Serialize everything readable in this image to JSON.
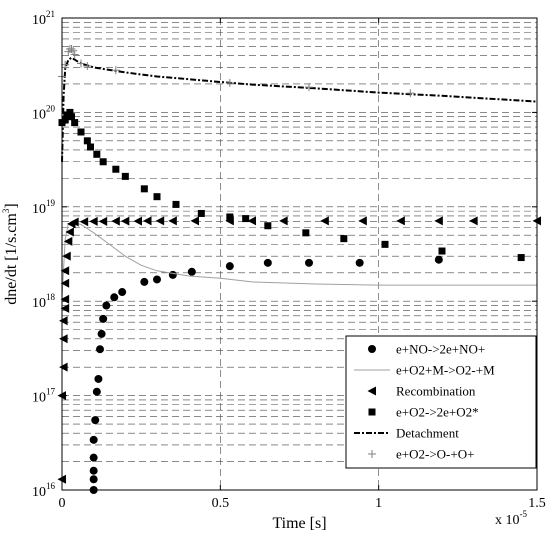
{
  "chart_data": {
    "type": "scatter",
    "title": "",
    "xlabel": "Time [s]",
    "ylabel_main": "dne/dt [1/s.cm",
    "ylabel_exp": "3",
    "ylabel_close": "]",
    "x_multiplier_base": "x 10",
    "x_multiplier_exp": "-5",
    "xscale": "linear",
    "yscale": "log",
    "xlim": [
      0,
      1.5
    ],
    "ylim": [
      1e+16,
      1e+21
    ],
    "grid": true,
    "legend_position": "bottom-right",
    "x_ticks": [
      {
        "value": 0,
        "label": "0"
      },
      {
        "value": 0.5,
        "label": "0.5"
      },
      {
        "value": 1,
        "label": "1"
      },
      {
        "value": 1.5,
        "label": "1.5"
      }
    ],
    "y_ticks": [
      {
        "value": 16,
        "base": "10",
        "exp": "16"
      },
      {
        "value": 17,
        "base": "10",
        "exp": "17"
      },
      {
        "value": 18,
        "base": "10",
        "exp": "18"
      },
      {
        "value": 19,
        "base": "10",
        "exp": "19"
      },
      {
        "value": 20,
        "base": "10",
        "exp": "20"
      },
      {
        "value": 21,
        "base": "10",
        "exp": "21"
      }
    ],
    "series": [
      {
        "name": "e+NO->2e+NO+",
        "style": "circle",
        "color": "#000000",
        "points": [
          [
            0.1,
            1e+16
          ],
          [
            0.1,
            1.3e+16
          ],
          [
            0.1,
            1.6e+16
          ],
          [
            0.1,
            2.2e+16
          ],
          [
            0.1,
            3.4e+16
          ],
          [
            0.105,
            5.5e+16
          ],
          [
            0.11,
            1.1e+17
          ],
          [
            0.115,
            1.5e+17
          ],
          [
            0.12,
            3.1e+17
          ],
          [
            0.125,
            4.5e+17
          ],
          [
            0.13,
            6.5e+17
          ],
          [
            0.14,
            9e+17
          ],
          [
            0.165,
            1.1e+18
          ],
          [
            0.19,
            1.25e+18
          ],
          [
            0.26,
            1.6e+18
          ],
          [
            0.3,
            1.7e+18
          ],
          [
            0.35,
            1.9e+18
          ],
          [
            0.41,
            2.05e+18
          ],
          [
            0.53,
            2.35e+18
          ],
          [
            0.65,
            2.55e+18
          ],
          [
            0.78,
            2.55e+18
          ],
          [
            0.94,
            2.55e+18
          ],
          [
            1.19,
            2.75e+18
          ]
        ]
      },
      {
        "name": "e+O2+M->O2-+M",
        "style": "line-thin",
        "color": "#a0a0a0",
        "points": [
          [
            0.0,
            1.1e+18
          ],
          [
            0.01,
            4.5e+18
          ],
          [
            0.02,
            6.6e+18
          ],
          [
            0.03,
            6.9e+18
          ],
          [
            0.06,
            6.5e+18
          ],
          [
            0.1,
            5.3e+18
          ],
          [
            0.15,
            4e+18
          ],
          [
            0.2,
            3e+18
          ],
          [
            0.25,
            2.4e+18
          ],
          [
            0.3,
            2.1e+18
          ],
          [
            0.4,
            1.85e+18
          ],
          [
            0.5,
            1.75e+18
          ],
          [
            0.6,
            1.6e+18
          ],
          [
            0.8,
            1.52e+18
          ],
          [
            1.0,
            1.48e+18
          ],
          [
            1.25,
            1.48e+18
          ],
          [
            1.5,
            1.48e+18
          ]
        ]
      },
      {
        "name": "Recombination",
        "style": "triangle-left",
        "color": "#000000",
        "points": [
          [
            0.0,
            1.3e+16
          ],
          [
            0.0,
            1e+17
          ],
          [
            0.005,
            2e+17
          ],
          [
            0.005,
            4e+17
          ],
          [
            0.005,
            6.2e+17
          ],
          [
            0.01,
            8.4e+17
          ],
          [
            0.01,
            1.05e+18
          ],
          [
            0.01,
            1.55e+18
          ],
          [
            0.01,
            2.1e+18
          ],
          [
            0.015,
            3e+18
          ],
          [
            0.02,
            4.3e+18
          ],
          [
            0.025,
            5.4e+18
          ],
          [
            0.03,
            6.6e+18
          ],
          [
            0.04,
            6.9e+18
          ],
          [
            0.07,
            6.95e+18
          ],
          [
            0.1,
            7e+18
          ],
          [
            0.13,
            7e+18
          ],
          [
            0.17,
            7.05e+18
          ],
          [
            0.2,
            7.05e+18
          ],
          [
            0.24,
            7.05e+18
          ],
          [
            0.27,
            7.1e+18
          ],
          [
            0.31,
            7.1e+18
          ],
          [
            0.35,
            7.1e+18
          ],
          [
            0.42,
            7.1e+18
          ],
          [
            0.53,
            7.1e+18
          ],
          [
            0.6,
            7.1e+18
          ],
          [
            0.7,
            7.1e+18
          ],
          [
            0.83,
            7.1e+18
          ],
          [
            0.95,
            7.1e+18
          ],
          [
            1.07,
            7.1e+18
          ],
          [
            1.19,
            7.1e+18
          ],
          [
            1.3,
            7.1e+18
          ],
          [
            1.5,
            7.1e+18
          ]
        ]
      },
      {
        "name": "e+O2->2e+O2*",
        "style": "square",
        "color": "#000000",
        "points": [
          [
            0.0,
            7.8e+19
          ],
          [
            0.01,
            8.3e+19
          ],
          [
            0.015,
            9.4e+19
          ],
          [
            0.025,
            1e+20
          ],
          [
            0.03,
            9e+19
          ],
          [
            0.04,
            7.8e+19
          ],
          [
            0.06,
            6.2e+19
          ],
          [
            0.08,
            5e+19
          ],
          [
            0.09,
            4.3e+19
          ],
          [
            0.11,
            3.6e+19
          ],
          [
            0.13,
            3e+19
          ],
          [
            0.17,
            2.5e+19
          ],
          [
            0.2,
            2.1e+19
          ],
          [
            0.26,
            1.55e+19
          ],
          [
            0.3,
            1.28e+19
          ],
          [
            0.36,
            1.06e+19
          ],
          [
            0.44,
            8.5e+18
          ],
          [
            0.53,
            7.8e+18
          ],
          [
            0.58,
            7.5e+18
          ],
          [
            0.65,
            6.3e+18
          ],
          [
            0.77,
            5.3e+18
          ],
          [
            0.89,
            4.6e+18
          ],
          [
            1.02,
            4e+18
          ],
          [
            1.2,
            3.4e+18
          ],
          [
            1.45,
            2.9e+18
          ]
        ]
      },
      {
        "name": "Detachment",
        "style": "line-dashdot",
        "color": "#000000",
        "points": [
          [
            0.0,
            3e+19
          ],
          [
            0.005,
            1.5e+20
          ],
          [
            0.01,
            2.9e+20
          ],
          [
            0.02,
            3.6e+20
          ],
          [
            0.03,
            3.8e+20
          ],
          [
            0.06,
            3.3e+20
          ],
          [
            0.1,
            3e+20
          ],
          [
            0.2,
            2.65e+20
          ],
          [
            0.3,
            2.4e+20
          ],
          [
            0.4,
            2.25e+20
          ],
          [
            0.5,
            2.1e+20
          ],
          [
            0.6,
            1.97e+20
          ],
          [
            0.8,
            1.8e+20
          ],
          [
            1.0,
            1.62e+20
          ],
          [
            1.2,
            1.5e+20
          ],
          [
            1.5,
            1.3e+20
          ]
        ]
      },
      {
        "name": "e+O2->O-+O+",
        "style": "plus",
        "color": "#808080",
        "points": [
          [
            0.0,
            2.4e+20
          ],
          [
            0.01,
            3.2e+20
          ],
          [
            0.02,
            4.4e+20
          ],
          [
            0.025,
            4.7e+20
          ],
          [
            0.03,
            4.7e+20
          ],
          [
            0.035,
            4.5e+20
          ],
          [
            0.04,
            4.1e+20
          ],
          [
            0.06,
            3.3e+20
          ],
          [
            0.08,
            3.1e+20
          ],
          [
            0.17,
            2.8e+20
          ],
          [
            0.53,
            2.05e+20
          ],
          [
            0.78,
            1.85e+20
          ],
          [
            1.1,
            1.6e+20
          ]
        ]
      }
    ]
  }
}
